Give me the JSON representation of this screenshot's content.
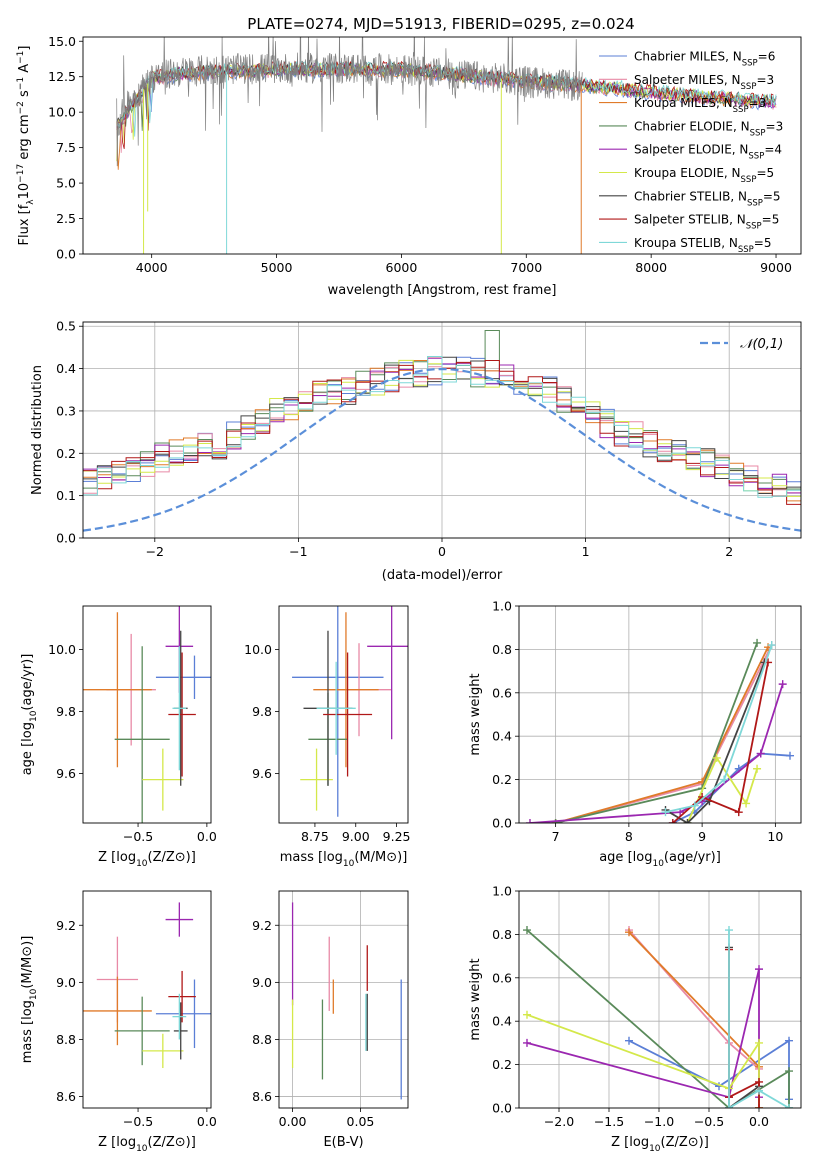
{
  "figure": {
    "title": "PLATE=0274, MJD=51913, FIBERID=0295, z=0.024"
  },
  "models": [
    {
      "name": "Chabrier MILES, N",
      "nssp": "=6",
      "color": "#5b7fd6"
    },
    {
      "name": "Salpeter MILES, N",
      "nssp": "=3",
      "color": "#e88aa6"
    },
    {
      "name": "Kroupa MILES, N",
      "nssp": "=3",
      "color": "#e07b2a"
    },
    {
      "name": "Chabrier ELODIE, N",
      "nssp": "=3",
      "color": "#5a8a5a"
    },
    {
      "name": "Salpeter ELODIE, N",
      "nssp": "=4",
      "color": "#9b27b0"
    },
    {
      "name": "Kroupa ELODIE, N",
      "nssp": "=5",
      "color": "#d4e84a"
    },
    {
      "name": "Chabrier STELIB, N",
      "nssp": "=5",
      "color": "#444444"
    },
    {
      "name": "Salpeter STELIB, N",
      "nssp": "=5",
      "color": "#b01818"
    },
    {
      "name": "Kroupa STELIB, N",
      "nssp": "=5",
      "color": "#7fd8d8"
    }
  ],
  "chart_data": [
    {
      "id": "spectrum",
      "type": "line",
      "xlabel": "wavelength [Angstrom, rest frame]",
      "ylabel": "Flux [f",
      "xlim": [
        3450,
        9200
      ],
      "ylim": [
        0,
        15.3
      ],
      "xticks": [
        4000,
        5000,
        6000,
        7000,
        8000,
        9000
      ],
      "yticks": [
        0.0,
        2.5,
        5.0,
        7.5,
        10.0,
        12.5,
        15.0
      ],
      "data_color": "#808080",
      "data_range": [
        3720,
        7450
      ],
      "continuum": {
        "x": [
          3720,
          3800,
          3900,
          4000,
          4100,
          4200,
          4500,
          5000,
          5500,
          6000,
          6500,
          7000,
          7450
        ],
        "y": [
          9.0,
          10.6,
          11.4,
          12.4,
          12.6,
          12.8,
          13.0,
          13.1,
          13.1,
          13.0,
          12.6,
          12.2,
          11.8
        ]
      },
      "model_range": [
        3720,
        9000
      ],
      "model_continuum": {
        "x": [
          3720,
          3900,
          4000,
          4200,
          5000,
          6000,
          6500,
          7000,
          7450,
          8000,
          8500,
          9000
        ],
        "y": [
          9.0,
          11.2,
          12.4,
          12.7,
          13.0,
          13.0,
          12.6,
          12.2,
          11.9,
          11.4,
          11.0,
          10.7
        ]
      },
      "spikes": [
        {
          "x": 3935,
          "y": 0.0,
          "color": "#d4e84a"
        },
        {
          "x": 3968,
          "y": 3.0,
          "color": "#d4e84a"
        },
        {
          "x": 4600,
          "y": 0.0,
          "color": "#7fd8d8"
        },
        {
          "x": 6800,
          "y": 0.0,
          "color": "#d4e84a"
        },
        {
          "x": 7440,
          "y": 0.0,
          "color": "#e07b2a"
        }
      ]
    },
    {
      "id": "residuals",
      "type": "histogram",
      "xlabel": "(data-model)/error",
      "ylabel": "Normed distribution",
      "xlim": [
        -2.5,
        2.5
      ],
      "ylim": [
        0,
        0.51
      ],
      "xticks": [
        -2,
        -1,
        0,
        1,
        2
      ],
      "yticks": [
        0.0,
        0.1,
        0.2,
        0.3,
        0.4,
        0.5
      ],
      "grid": true,
      "bin_width": 0.1,
      "reference_label": "𝒩(0,1)",
      "reference_color": "#5b8fd9",
      "bins_base": [
        0.045,
        0.05,
        0.055,
        0.05,
        0.06,
        0.065,
        0.08,
        0.09,
        0.1,
        0.12,
        0.13,
        0.14,
        0.15,
        0.165,
        0.18,
        0.19,
        0.2,
        0.21,
        0.215,
        0.22,
        0.24,
        0.26,
        0.28,
        0.3,
        0.31,
        0.33,
        0.34,
        0.345,
        0.35,
        0.36,
        0.37,
        0.38,
        0.385,
        0.39,
        0.395,
        0.4,
        0.395,
        0.39,
        0.385,
        0.38,
        0.37,
        0.36,
        0.35,
        0.33,
        0.31,
        0.29,
        0.27,
        0.25,
        0.24,
        0.225,
        0.21,
        0.2,
        0.19,
        0.18,
        0.165,
        0.15,
        0.14,
        0.13,
        0.12,
        0.11,
        0.1,
        0.09,
        0.08,
        0.075,
        0.07,
        0.065,
        0.06,
        0.055,
        0.05,
        0.045
      ],
      "series_mark": {
        "x": 0.35,
        "y": 0.49
      }
    },
    {
      "id": "age-vs-Z",
      "type": "errorbar",
      "xlabel": "Z [log",
      "ylabel": "age  [log",
      "xlim": [
        -0.9,
        0.03
      ],
      "ylim": [
        9.44,
        10.14
      ],
      "xticks": [
        -0.5,
        0.0
      ],
      "yticks": [
        9.6,
        9.8,
        10.0
      ],
      "points": [
        {
          "c": 0,
          "x": -0.09,
          "y": 9.91,
          "xerr": 0.28,
          "yerr": 0.07
        },
        {
          "c": 1,
          "x": -0.55,
          "y": 9.87,
          "xerr": 0.18,
          "yerr": 0.18
        },
        {
          "c": 2,
          "x": -0.65,
          "y": 9.87,
          "xerr": 0.25,
          "yerr": 0.25
        },
        {
          "c": 3,
          "x": -0.47,
          "y": 9.71,
          "xerr": 0.2,
          "yerr": 0.3
        },
        {
          "c": 4,
          "x": -0.2,
          "y": 10.01,
          "xerr": 0.1,
          "yerr": 0.15
        },
        {
          "c": 5,
          "x": -0.32,
          "y": 9.58,
          "xerr": 0.15,
          "yerr": 0.1
        },
        {
          "c": 6,
          "x": -0.19,
          "y": 9.81,
          "xerr": 0.05,
          "yerr": 0.25
        },
        {
          "c": 7,
          "x": -0.18,
          "y": 9.79,
          "xerr": 0.1,
          "yerr": 0.2
        },
        {
          "c": 8,
          "x": -0.2,
          "y": 9.81,
          "xerr": 0.05,
          "yerr": 0.2
        }
      ]
    },
    {
      "id": "age-vs-mass",
      "type": "errorbar",
      "xlabel": "mass [log",
      "ylabel": "",
      "xlim": [
        8.53,
        9.32
      ],
      "ylim": [
        9.44,
        10.14
      ],
      "xticks": [
        8.75,
        9.0,
        9.25
      ],
      "yticks": [
        9.6,
        9.8,
        10.0
      ],
      "points": [
        {
          "c": 0,
          "x": 8.89,
          "y": 9.91,
          "xerr": 0.28,
          "yerr": 0.45
        },
        {
          "c": 1,
          "x": 9.02,
          "y": 9.87,
          "xerr": 0.2,
          "yerr": 0.15
        },
        {
          "c": 2,
          "x": 8.94,
          "y": 9.87,
          "xerr": 0.2,
          "yerr": 0.25
        },
        {
          "c": 3,
          "x": 8.83,
          "y": 9.71,
          "xerr": 0.12,
          "yerr": 0.15
        },
        {
          "c": 4,
          "x": 9.22,
          "y": 10.01,
          "xerr": 0.15,
          "yerr": 0.3
        },
        {
          "c": 5,
          "x": 8.76,
          "y": 9.58,
          "xerr": 0.1,
          "yerr": 0.1
        },
        {
          "c": 6,
          "x": 8.83,
          "y": 9.81,
          "xerr": 0.15,
          "yerr": 0.25
        },
        {
          "c": 7,
          "x": 8.95,
          "y": 9.79,
          "xerr": 0.15,
          "yerr": 0.2
        },
        {
          "c": 8,
          "x": 8.88,
          "y": 9.81,
          "xerr": 0.12,
          "yerr": 0.15
        }
      ]
    },
    {
      "id": "mass-vs-Z",
      "type": "errorbar",
      "xlabel": "Z [log",
      "ylabel": "mass [log",
      "xlim": [
        -0.9,
        0.03
      ],
      "ylim": [
        8.56,
        9.32
      ],
      "xticks": [
        -0.5,
        0.0
      ],
      "yticks": [
        8.6,
        8.8,
        9.0,
        9.2
      ],
      "points": [
        {
          "c": 0,
          "x": -0.09,
          "y": 8.89,
          "xerr": 0.28,
          "yerr": 0.12
        },
        {
          "c": 1,
          "x": -0.65,
          "y": 9.01,
          "xerr": 0.15,
          "yerr": 0.15
        },
        {
          "c": 2,
          "x": -0.65,
          "y": 8.9,
          "xerr": 0.25,
          "yerr": 0.12
        },
        {
          "c": 3,
          "x": -0.47,
          "y": 8.83,
          "xerr": 0.2,
          "yerr": 0.12
        },
        {
          "c": 4,
          "x": -0.2,
          "y": 9.22,
          "xerr": 0.1,
          "yerr": 0.06
        },
        {
          "c": 5,
          "x": -0.32,
          "y": 8.76,
          "xerr": 0.15,
          "yerr": 0.06
        },
        {
          "c": 6,
          "x": -0.19,
          "y": 8.83,
          "xerr": 0.05,
          "yerr": 0.1
        },
        {
          "c": 7,
          "x": -0.18,
          "y": 8.95,
          "xerr": 0.1,
          "yerr": 0.09
        },
        {
          "c": 8,
          "x": -0.2,
          "y": 8.88,
          "xerr": 0.05,
          "yerr": 0.08
        }
      ]
    },
    {
      "id": "mass-vs-ebv",
      "type": "errorbar",
      "xlabel": "E(B-V)",
      "ylabel": "",
      "xlim": [
        -0.01,
        0.085
      ],
      "ylim": [
        8.56,
        9.32
      ],
      "xticks": [
        0.0,
        0.05
      ],
      "yticks": [
        8.6,
        8.8,
        9.0,
        9.2
      ],
      "grid": true,
      "points": [
        {
          "c": 0,
          "x": 0.08,
          "y": 8.8,
          "xerr": 0,
          "yerr": 0.21
        },
        {
          "c": 1,
          "x": 0.027,
          "y": 9.03,
          "xerr": 0,
          "yerr": 0.13
        },
        {
          "c": 2,
          "x": 0.03,
          "y": 8.95,
          "xerr": 0,
          "yerr": 0.06
        },
        {
          "c": 3,
          "x": 0.022,
          "y": 8.8,
          "xerr": 0,
          "yerr": 0.14
        },
        {
          "c": 4,
          "x": 0.0,
          "y": 9.1,
          "xerr": 0,
          "yerr": 0.18
        },
        {
          "c": 5,
          "x": 0.0,
          "y": 8.82,
          "xerr": 0,
          "yerr": 0.12
        },
        {
          "c": 6,
          "x": 0.055,
          "y": 8.86,
          "xerr": 0,
          "yerr": 0.1
        },
        {
          "c": 7,
          "x": 0.055,
          "y": 9.05,
          "xerr": 0,
          "yerr": 0.08
        },
        {
          "c": 8,
          "x": 0.054,
          "y": 8.86,
          "xerr": 0,
          "yerr": 0.1
        }
      ]
    },
    {
      "id": "weight-vs-age",
      "type": "line",
      "xlabel": "age  [log",
      "ylabel": "mass weight",
      "xlim": [
        6.5,
        10.35
      ],
      "ylim": [
        0,
        1.0
      ],
      "xticks": [
        7,
        8,
        9,
        10
      ],
      "yticks": [
        0.0,
        0.2,
        0.4,
        0.6,
        0.8,
        1.0
      ],
      "grid": true,
      "series": [
        {
          "c": 0,
          "x": [
            8.6,
            8.9,
            9.5,
            9.8,
            10.2
          ],
          "y": [
            0.0,
            0.05,
            0.25,
            0.32,
            0.31
          ]
        },
        {
          "c": 1,
          "x": [
            7.0,
            9.0,
            9.95
          ],
          "y": [
            0.0,
            0.18,
            0.82
          ]
        },
        {
          "c": 2,
          "x": [
            7.0,
            9.0,
            9.9
          ],
          "y": [
            0.0,
            0.19,
            0.81
          ]
        },
        {
          "c": 3,
          "x": [
            7.0,
            9.0,
            9.75
          ],
          "y": [
            0.0,
            0.16,
            0.83
          ]
        },
        {
          "c": 4,
          "x": [
            6.65,
            8.7,
            9.0,
            9.8,
            10.1
          ],
          "y": [
            0.0,
            0.05,
            0.1,
            0.32,
            0.64
          ]
        },
        {
          "c": 5,
          "x": [
            8.8,
            9.2,
            9.6,
            9.75
          ],
          "y": [
            0.0,
            0.3,
            0.09,
            0.25
          ]
        },
        {
          "c": 6,
          "x": [
            8.5,
            8.8,
            9.1,
            9.85
          ],
          "y": [
            0.06,
            0.0,
            0.1,
            0.74
          ]
        },
        {
          "c": 7,
          "x": [
            8.6,
            9.0,
            9.5,
            9.9
          ],
          "y": [
            0.0,
            0.12,
            0.05,
            0.74
          ]
        },
        {
          "c": 8,
          "x": [
            8.5,
            8.9,
            9.3,
            9.95
          ],
          "y": [
            0.05,
            0.08,
            0.2,
            0.82
          ]
        }
      ]
    },
    {
      "id": "weight-vs-Z",
      "type": "line",
      "xlabel": "Z [log",
      "ylabel": "mass weight",
      "xlim": [
        -2.4,
        0.42
      ],
      "ylim": [
        0,
        1.0
      ],
      "xticks": [
        -2.0,
        -1.5,
        -1.0,
        -0.5,
        0.0
      ],
      "yticks": [
        0.0,
        0.2,
        0.4,
        0.6,
        0.8,
        1.0
      ],
      "grid": true,
      "series": [
        {
          "c": 0,
          "x": [
            -1.3,
            -0.4,
            0.3,
            0.3
          ],
          "y": [
            0.31,
            0.1,
            0.31,
            0.04
          ]
        },
        {
          "c": 1,
          "x": [
            -1.3,
            -0.3,
            0.0
          ],
          "y": [
            0.82,
            0.3,
            0.18
          ]
        },
        {
          "c": 2,
          "x": [
            -1.3,
            0.0,
            0.0
          ],
          "y": [
            0.81,
            0.19,
            0.0
          ]
        },
        {
          "c": 3,
          "x": [
            -2.32,
            -0.3,
            0.3,
            0.3
          ],
          "y": [
            0.82,
            0.0,
            0.17,
            0.0
          ]
        },
        {
          "c": 4,
          "x": [
            -2.32,
            -0.3,
            0.0,
            0.0
          ],
          "y": [
            0.3,
            0.05,
            0.64,
            0.05
          ]
        },
        {
          "c": 5,
          "x": [
            -2.32,
            -0.3,
            0.0,
            0.0
          ],
          "y": [
            0.43,
            0.09,
            0.3,
            0.0
          ]
        },
        {
          "c": 6,
          "x": [
            -0.3,
            -0.3,
            0.0
          ],
          "y": [
            0.74,
            0.0,
            0.1
          ]
        },
        {
          "c": 7,
          "x": [
            -0.3,
            -0.3,
            0.0,
            0.0
          ],
          "y": [
            0.73,
            0.05,
            0.12,
            0.0
          ]
        },
        {
          "c": 8,
          "x": [
            -0.3,
            -0.3,
            0.0,
            0.3
          ],
          "y": [
            0.82,
            0.0,
            0.08,
            0.0
          ]
        }
      ]
    }
  ]
}
